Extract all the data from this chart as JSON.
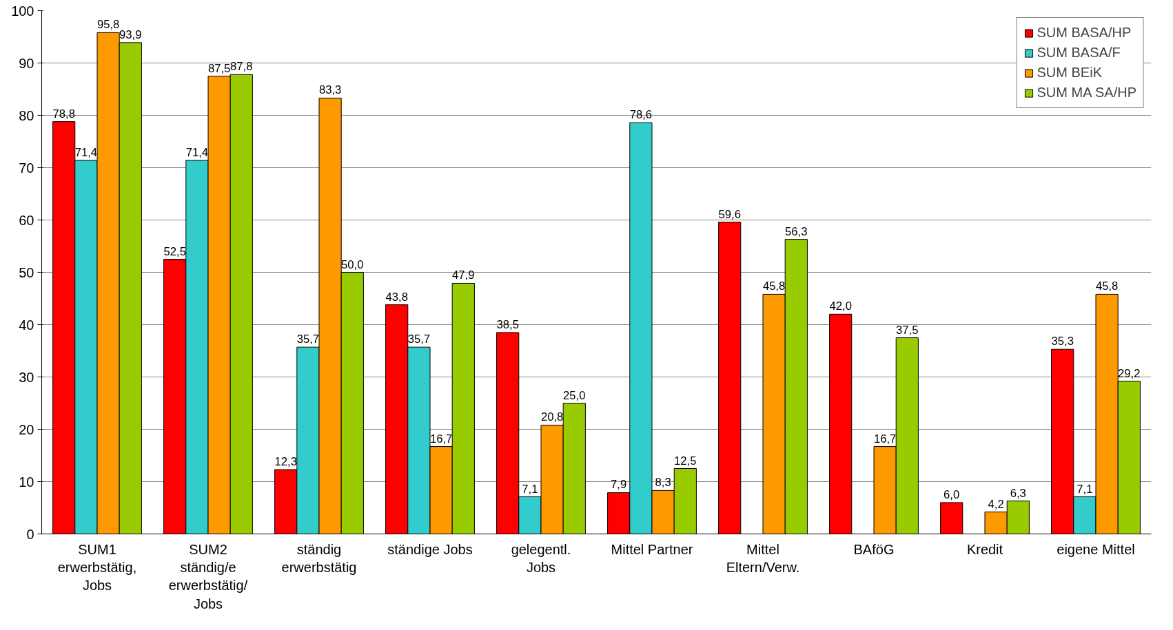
{
  "chart_data": {
    "type": "bar",
    "categories": [
      "SUM1\nerwerbstätig,\nJobs",
      "SUM2\nständig/e\nerwerbstätig/\nJobs",
      "ständig\nerwerbstätig",
      "ständige Jobs",
      "gelegentl.\nJobs",
      "Mittel Partner",
      "Mittel\nEltern/Verw.",
      "BAföG",
      "Kredit",
      "eigene Mittel"
    ],
    "series": [
      {
        "name": "SUM BASA/HP",
        "color": "#ff0000",
        "values": [
          78.8,
          52.5,
          12.3,
          43.8,
          38.5,
          7.9,
          59.6,
          42.0,
          6.0,
          35.3
        ],
        "value_labels": [
          "78,8",
          "52,5",
          "12,3",
          "43,8",
          "38,5",
          "7,9",
          "59,6",
          "42,0",
          "6,0",
          "35,3"
        ]
      },
      {
        "name": "SUM BASA/F",
        "color": "#33cccc",
        "values": [
          71.4,
          71.4,
          35.7,
          35.7,
          7.1,
          78.6,
          null,
          null,
          null,
          7.1
        ],
        "value_labels": [
          "71,4",
          "71,4",
          "35,7",
          "35,7",
          "7,1",
          "78,6",
          null,
          null,
          null,
          "7,1"
        ]
      },
      {
        "name": "SUM BEiK",
        "color": "#ff9900",
        "values": [
          95.8,
          87.5,
          83.3,
          16.7,
          20.8,
          8.3,
          45.8,
          16.7,
          4.2,
          45.8
        ],
        "value_labels": [
          "95,8",
          "87,5",
          "83,3",
          "16,7",
          "20,8",
          "8,3",
          "45,8",
          "16,7",
          "4,2",
          "45,8"
        ]
      },
      {
        "name": "SUM MA SA/HP",
        "color": "#99cc00",
        "values": [
          93.9,
          87.8,
          50.0,
          47.9,
          25.0,
          12.5,
          56.3,
          37.5,
          6.3,
          29.2
        ],
        "value_labels": [
          "93,9",
          "87,8",
          "50,0",
          "47,9",
          "25,0",
          "12,5",
          "56,3",
          "37,5",
          "6,3",
          "29,2"
        ]
      }
    ],
    "ylim": [
      0,
      100
    ],
    "yticks": [
      0,
      10,
      20,
      30,
      40,
      50,
      60,
      70,
      80,
      90,
      100
    ],
    "grid": "y",
    "legend": "top right"
  }
}
